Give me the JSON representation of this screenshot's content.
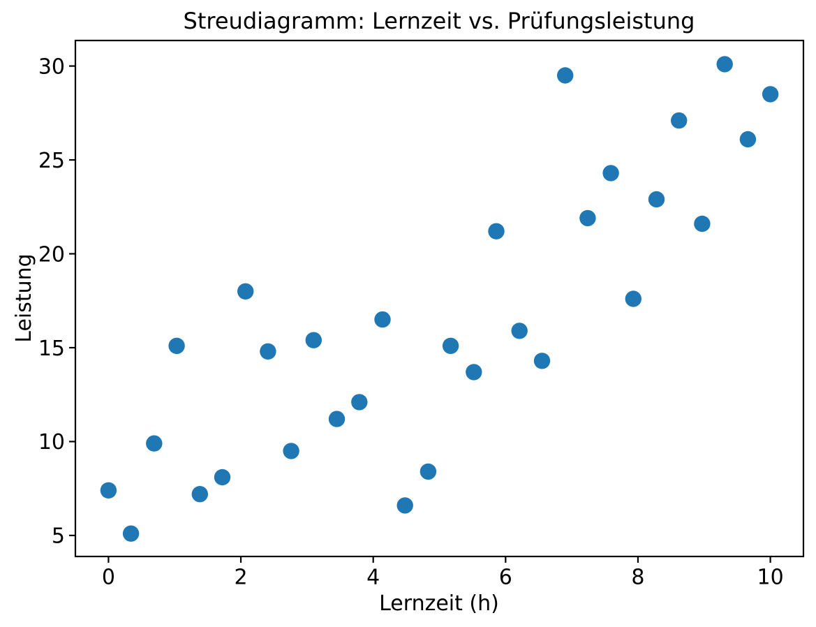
{
  "chart_data": {
    "type": "scatter",
    "title": "Streudiagramm: Lernzeit vs. Prüfungsleistung",
    "xlabel": "Lernzeit (h)",
    "ylabel": "Leistung",
    "xlim": [
      -0.5,
      10.5
    ],
    "ylim": [
      3.88,
      31.36
    ],
    "x_ticks": [
      0,
      2,
      4,
      6,
      8,
      10
    ],
    "y_ticks": [
      5,
      10,
      15,
      20,
      25,
      30
    ],
    "grid": false,
    "legend": false,
    "marker_color": "#1f77b4",
    "x": [
      0.0,
      0.34,
      0.69,
      1.03,
      1.38,
      1.72,
      2.07,
      2.41,
      2.76,
      3.1,
      3.45,
      3.79,
      4.14,
      4.48,
      4.83,
      5.17,
      5.52,
      5.86,
      6.21,
      6.55,
      6.9,
      7.24,
      7.59,
      7.93,
      8.28,
      8.62,
      8.97,
      9.31,
      9.66,
      10.0
    ],
    "y": [
      7.4,
      5.1,
      9.9,
      15.1,
      7.2,
      8.1,
      18.0,
      14.8,
      9.5,
      15.4,
      11.2,
      12.1,
      16.5,
      6.6,
      8.4,
      15.1,
      13.7,
      21.2,
      15.9,
      14.3,
      29.5,
      21.9,
      24.3,
      17.6,
      22.9,
      27.1,
      21.6,
      30.1,
      26.1,
      28.5
    ]
  }
}
